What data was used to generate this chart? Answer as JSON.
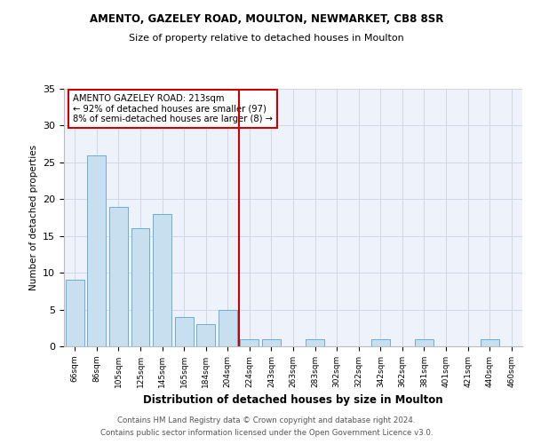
{
  "title_line1": "AMENTO, GAZELEY ROAD, MOULTON, NEWMARKET, CB8 8SR",
  "title_line2": "Size of property relative to detached houses in Moulton",
  "xlabel": "Distribution of detached houses by size in Moulton",
  "ylabel": "Number of detached properties",
  "categories": [
    "66sqm",
    "86sqm",
    "105sqm",
    "125sqm",
    "145sqm",
    "165sqm",
    "184sqm",
    "204sqm",
    "224sqm",
    "243sqm",
    "263sqm",
    "283sqm",
    "302sqm",
    "322sqm",
    "342sqm",
    "362sqm",
    "381sqm",
    "401sqm",
    "421sqm",
    "440sqm",
    "460sqm"
  ],
  "values": [
    9,
    26,
    19,
    16,
    18,
    4,
    3,
    5,
    1,
    1,
    0,
    1,
    0,
    0,
    1,
    0,
    1,
    0,
    0,
    1,
    0
  ],
  "bar_color": "#c8dff0",
  "bar_edgecolor": "#6aaed6",
  "vline_color": "#cc0000",
  "annotation_title": "AMENTO GAZELEY ROAD: 213sqm",
  "annotation_line1": "← 92% of detached houses are smaller (97)",
  "annotation_line2": "8% of semi-detached houses are larger (8) →",
  "annotation_box_color": "#cc0000",
  "ylim": [
    0,
    35
  ],
  "yticks": [
    0,
    5,
    10,
    15,
    20,
    25,
    30,
    35
  ],
  "grid_color": "#d0d8e8",
  "bg_color": "#eef2fb",
  "footer_line1": "Contains HM Land Registry data © Crown copyright and database right 2024.",
  "footer_line2": "Contains public sector information licensed under the Open Government Licence v3.0."
}
